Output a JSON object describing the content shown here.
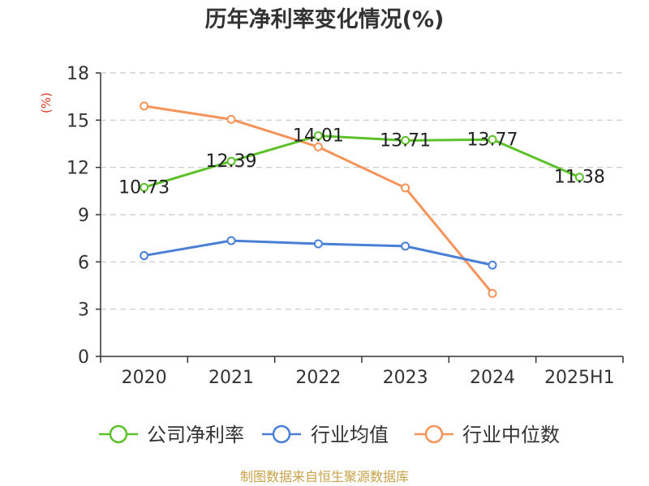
{
  "chart_data": {
    "type": "line",
    "title": "历年净利率变化情况(%)",
    "ylabel": "(%)",
    "categories": [
      "2020",
      "2021",
      "2022",
      "2023",
      "2024",
      "2025H1"
    ],
    "yticks": [
      "0",
      "3",
      "6",
      "9",
      "12",
      "15",
      "18"
    ],
    "ylim": [
      0,
      18
    ],
    "grid": true,
    "legend_position": "bottom",
    "series": [
      {
        "name": "公司净利率",
        "color": "#5cc12a",
        "values": [
          10.73,
          12.39,
          14.01,
          13.71,
          13.77,
          11.38
        ],
        "labels": [
          "10.73",
          "12.39",
          "14.01",
          "13.71",
          "13.77",
          "11.38"
        ]
      },
      {
        "name": "行业均值",
        "color": "#4a7fd6",
        "values": [
          6.4,
          7.35,
          7.15,
          7.0,
          5.8,
          null
        ]
      },
      {
        "name": "行业中位数",
        "color": "#f4935a",
        "values": [
          15.9,
          15.05,
          13.3,
          10.7,
          4.0,
          null
        ]
      }
    ]
  },
  "source_text": "制图数据来自恒生聚源数据库"
}
